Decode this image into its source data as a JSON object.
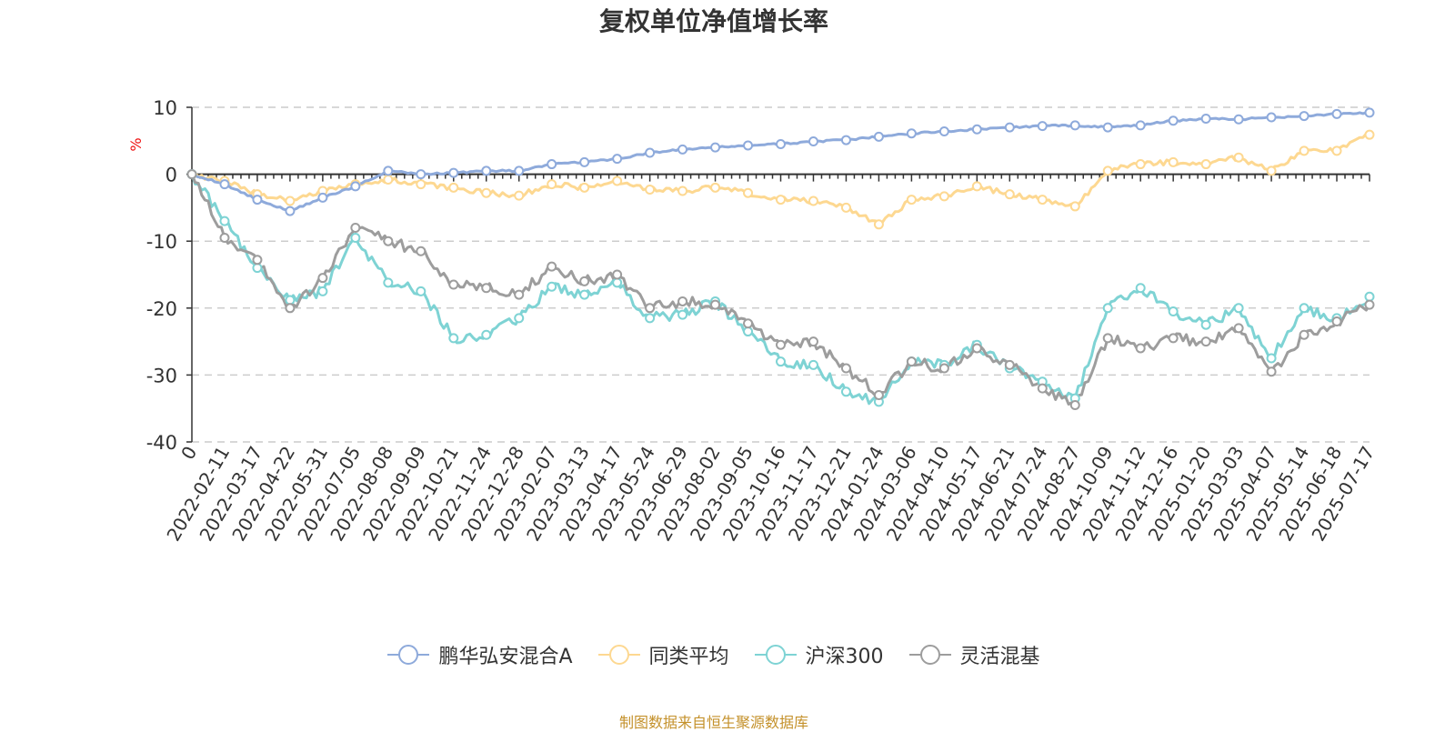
{
  "title": "复权单位净值增长率",
  "source_note": "制图数据来自恒生聚源数据库",
  "chart_data": {
    "type": "line",
    "title": "复权单位净值增长率",
    "ylabel": "%",
    "xlabel": "",
    "ylim": [
      -40,
      10
    ],
    "yticks": [
      10,
      0,
      -10,
      -20,
      -30,
      -40
    ],
    "grid": true,
    "legend_position": "bottom",
    "x_tick_labels": [
      "0",
      "2022-02-11",
      "2022-03-17",
      "2022-04-22",
      "2022-05-31",
      "2022-07-05",
      "2022-08-08",
      "2022-09-09",
      "2022-10-21",
      "2022-11-24",
      "2022-12-28",
      "2023-02-07",
      "2023-03-13",
      "2023-04-17",
      "2023-05-24",
      "2023-06-29",
      "2023-08-02",
      "2023-09-05",
      "2023-10-16",
      "2023-11-17",
      "2023-12-21",
      "2024-01-24",
      "2024-03-06",
      "2024-04-10",
      "2024-05-17",
      "2024-06-21",
      "2024-07-24",
      "2024-08-27",
      "2024-10-09",
      "2024-11-12",
      "2024-12-16",
      "2025-01-20",
      "2025-03-03",
      "2025-04-07",
      "2025-05-14",
      "2025-06-18",
      "2025-07-17"
    ],
    "x": [
      "0",
      "2022-02-11",
      "2022-03-17",
      "2022-04-22",
      "2022-05-31",
      "2022-07-05",
      "2022-08-08",
      "2022-09-09",
      "2022-10-21",
      "2022-11-24",
      "2022-12-28",
      "2023-02-07",
      "2023-03-13",
      "2023-04-17",
      "2023-05-24",
      "2023-06-29",
      "2023-08-02",
      "2023-09-05",
      "2023-10-16",
      "2023-11-17",
      "2023-12-21",
      "2024-01-24",
      "2024-03-06",
      "2024-04-10",
      "2024-05-17",
      "2024-06-21",
      "2024-07-24",
      "2024-08-27",
      "2024-10-09",
      "2024-11-12",
      "2024-12-16",
      "2025-01-20",
      "2025-03-03",
      "2025-04-07",
      "2025-05-14",
      "2025-06-18",
      "2025-07-17"
    ],
    "series": [
      {
        "name": "鹏华弘安混合A",
        "color": "#8eaadb",
        "values": [
          0,
          -1.5,
          -3.8,
          -5.5,
          -3.5,
          -1.8,
          0.5,
          0,
          0.2,
          0.5,
          0.5,
          1.5,
          1.8,
          2.3,
          3.2,
          3.7,
          4.0,
          4.3,
          4.5,
          4.9,
          5.1,
          5.6,
          6.1,
          6.4,
          6.7,
          7.0,
          7.2,
          7.3,
          7.0,
          7.3,
          8.0,
          8.3,
          8.2,
          8.5,
          8.7,
          9.0,
          9.2
        ]
      },
      {
        "name": "同类平均",
        "color": "#fdd891",
        "values": [
          0,
          -1.0,
          -3.0,
          -4.0,
          -2.5,
          -1.5,
          -0.8,
          -1.5,
          -2.0,
          -2.8,
          -3.2,
          -1.5,
          -2.0,
          -1.0,
          -2.3,
          -2.5,
          -2.0,
          -2.8,
          -3.8,
          -4.0,
          -5.0,
          -7.5,
          -3.8,
          -3.3,
          -1.8,
          -3.0,
          -3.8,
          -4.8,
          0.5,
          1.5,
          1.8,
          1.5,
          2.5,
          0.5,
          3.5,
          3.5,
          5.9
        ]
      },
      {
        "name": "沪深300",
        "color": "#7ed3d4",
        "values": [
          0,
          -7.0,
          -14.0,
          -18.8,
          -17.5,
          -9.5,
          -16.2,
          -17.5,
          -24.5,
          -24.0,
          -21.5,
          -16.8,
          -18.0,
          -16.2,
          -21.5,
          -21.0,
          -19.0,
          -23.5,
          -28.0,
          -28.5,
          -32.5,
          -34.0,
          -28.0,
          -28.5,
          -25.5,
          -29.0,
          -31.0,
          -33.5,
          -20.0,
          -17.0,
          -20.5,
          -22.5,
          -20.0,
          -27.5,
          -20.0,
          -21.5,
          -18.3
        ]
      },
      {
        "name": "灵活混基",
        "color": "#9d9d9d",
        "values": [
          0,
          -9.5,
          -12.8,
          -20.0,
          -15.5,
          -8.0,
          -10.0,
          -11.5,
          -16.5,
          -17.0,
          -18.0,
          -13.8,
          -16.0,
          -15.0,
          -20.0,
          -19.0,
          -19.5,
          -22.3,
          -25.5,
          -25.0,
          -29.0,
          -33.0,
          -28.0,
          -29.0,
          -26.0,
          -28.5,
          -32.0,
          -34.5,
          -24.5,
          -26.0,
          -24.5,
          -25.0,
          -23.0,
          -29.5,
          -24.0,
          -22.0,
          -19.5
        ]
      }
    ]
  }
}
